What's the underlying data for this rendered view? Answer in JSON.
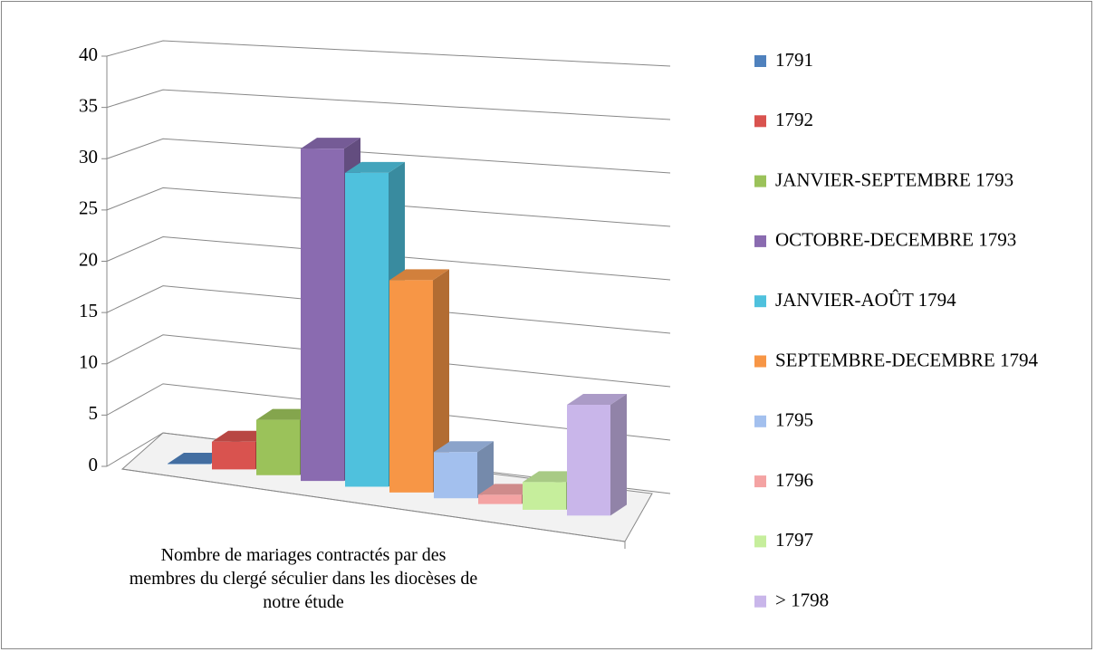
{
  "chart_data": {
    "type": "bar",
    "categories": [
      "Nombre de mariages contractés par des membres du clergé séculier dans les diocèses de notre étude"
    ],
    "series": [
      {
        "name": "1791",
        "color": "#4f81bd",
        "values": [
          0
        ]
      },
      {
        "name": "1792",
        "color": "#d9534f",
        "values": [
          3
        ]
      },
      {
        "name": "JANVIER-SEPTEMBRE 1793",
        "color": "#9bc25a",
        "values": [
          6
        ]
      },
      {
        "name": "OCTOBRE-DECEMBRE 1793",
        "color": "#8a6bb0",
        "values": [
          36
        ]
      },
      {
        "name": "JANVIER-AOÛT 1794",
        "color": "#4fc1dd",
        "values": [
          34
        ]
      },
      {
        "name": "SEPTEMBRE-DECEMBRE 1794",
        "color": "#f79646",
        "values": [
          23
        ]
      },
      {
        "name": "1795",
        "color": "#a3c0ee",
        "values": [
          5
        ]
      },
      {
        "name": "1796",
        "color": "#f4a3a3",
        "values": [
          1
        ]
      },
      {
        "name": "1797",
        "color": "#c6ee9c",
        "values": [
          3
        ]
      },
      {
        "name": "> 1798",
        "color": "#c9b6ea",
        "values": [
          12
        ]
      }
    ],
    "ylim": [
      0,
      40
    ],
    "yticks": [
      0,
      5,
      10,
      15,
      20,
      25,
      30,
      35,
      40
    ],
    "grid": true,
    "legend": "right"
  }
}
